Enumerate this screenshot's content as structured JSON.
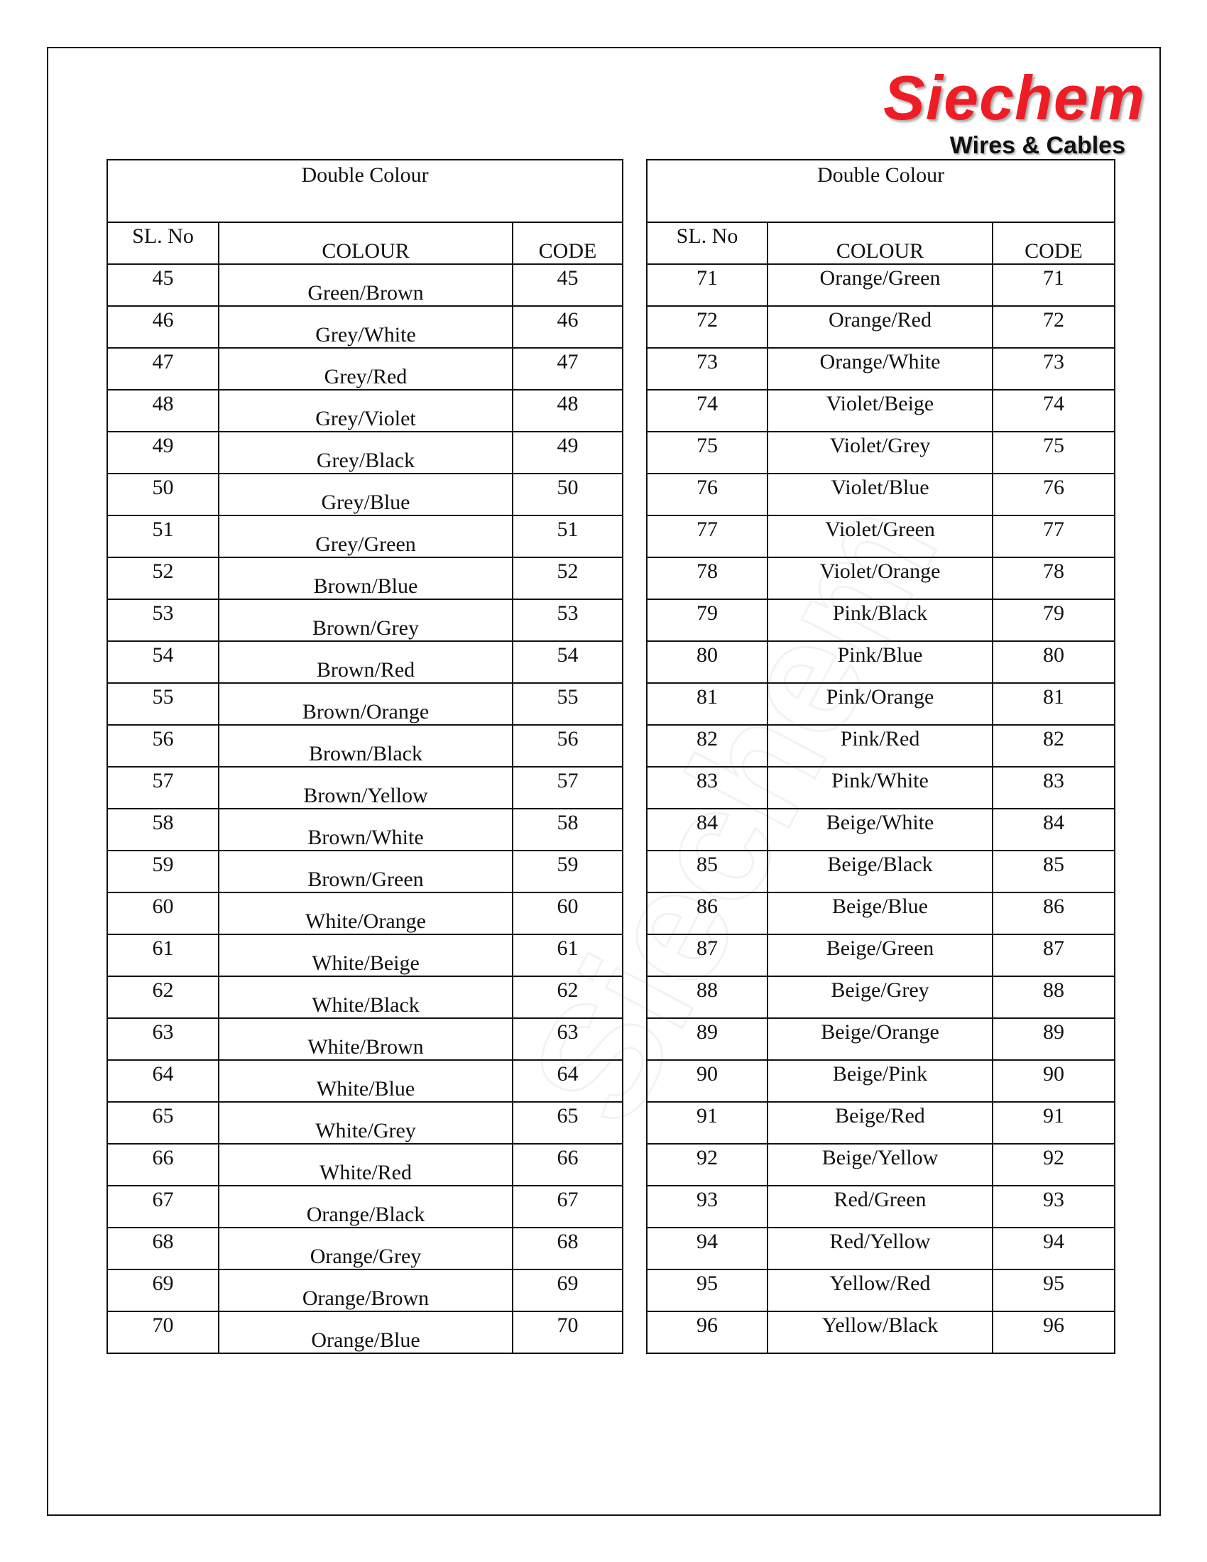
{
  "logo": {
    "brand": "Siechem",
    "tagline": "Wires & Cables",
    "brand_color": "#ee1c24"
  },
  "watermark": "Siechem",
  "tables": [
    {
      "title": "Double Colour",
      "headers": {
        "sl": "SL. No",
        "colour": "COLOUR",
        "code": "CODE"
      },
      "rows": [
        [
          "45",
          "Green/Brown",
          "45"
        ],
        [
          "46",
          "Grey/White",
          "46"
        ],
        [
          "47",
          "Grey/Red",
          "47"
        ],
        [
          "48",
          "Grey/Violet",
          "48"
        ],
        [
          "49",
          "Grey/Black",
          "49"
        ],
        [
          "50",
          "Grey/Blue",
          "50"
        ],
        [
          "51",
          "Grey/Green",
          "51"
        ],
        [
          "52",
          "Brown/Blue",
          "52"
        ],
        [
          "53",
          "Brown/Grey",
          "53"
        ],
        [
          "54",
          "Brown/Red",
          "54"
        ],
        [
          "55",
          "Brown/Orange",
          "55"
        ],
        [
          "56",
          "Brown/Black",
          "56"
        ],
        [
          "57",
          "Brown/Yellow",
          "57"
        ],
        [
          "58",
          "Brown/White",
          "58"
        ],
        [
          "59",
          "Brown/Green",
          "59"
        ],
        [
          "60",
          "White/Orange",
          "60"
        ],
        [
          "61",
          "White/Beige",
          "61"
        ],
        [
          "62",
          "White/Black",
          "62"
        ],
        [
          "63",
          "White/Brown",
          "63"
        ],
        [
          "64",
          "White/Blue",
          "64"
        ],
        [
          "65",
          "White/Grey",
          "65"
        ],
        [
          "66",
          "White/Red",
          "66"
        ],
        [
          "67",
          "Orange/Black",
          "67"
        ],
        [
          "68",
          "Orange/Grey",
          "68"
        ],
        [
          "69",
          "Orange/Brown",
          "69"
        ],
        [
          "70",
          "Orange/Blue",
          "70"
        ]
      ]
    },
    {
      "title": "Double Colour",
      "headers": {
        "sl": "SL. No",
        "colour": "COLOUR",
        "code": "CODE"
      },
      "rows": [
        [
          "71",
          "Orange/Green",
          "71"
        ],
        [
          "72",
          "Orange/Red",
          "72"
        ],
        [
          "73",
          "Orange/White",
          "73"
        ],
        [
          "74",
          "Violet/Beige",
          "74"
        ],
        [
          "75",
          "Violet/Grey",
          "75"
        ],
        [
          "76",
          "Violet/Blue",
          "76"
        ],
        [
          "77",
          "Violet/Green",
          "77"
        ],
        [
          "78",
          "Violet/Orange",
          "78"
        ],
        [
          "79",
          "Pink/Black",
          "79"
        ],
        [
          "80",
          "Pink/Blue",
          "80"
        ],
        [
          "81",
          "Pink/Orange",
          "81"
        ],
        [
          "82",
          "Pink/Red",
          "82"
        ],
        [
          "83",
          "Pink/White",
          "83"
        ],
        [
          "84",
          "Beige/White",
          "84"
        ],
        [
          "85",
          "Beige/Black",
          "85"
        ],
        [
          "86",
          "Beige/Blue",
          "86"
        ],
        [
          "87",
          "Beige/Green",
          "87"
        ],
        [
          "88",
          "Beige/Grey",
          "88"
        ],
        [
          "89",
          "Beige/Orange",
          "89"
        ],
        [
          "90",
          "Beige/Pink",
          "90"
        ],
        [
          "91",
          "Beige/Red",
          "91"
        ],
        [
          "92",
          "Beige/Yellow",
          "92"
        ],
        [
          "93",
          "Red/Green",
          "93"
        ],
        [
          "94",
          "Red/Yellow",
          "94"
        ],
        [
          "95",
          "Yellow/Red",
          "95"
        ],
        [
          "96",
          "Yellow/Black",
          "96"
        ]
      ]
    }
  ]
}
